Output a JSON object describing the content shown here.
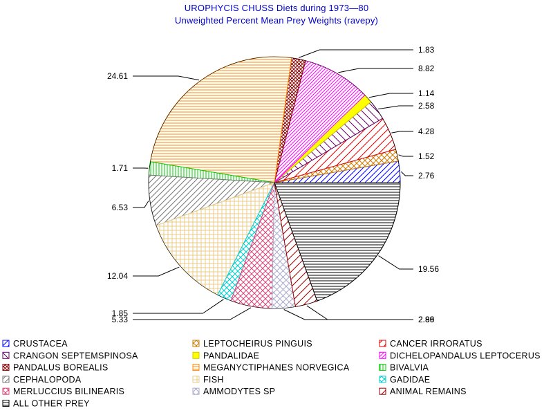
{
  "title": "UROPHYCIS CHUSS Diets during 1973—80",
  "subtitle": "Unweighted Percent Mean Prey Weights (ravepy)",
  "chart_data": {
    "type": "pie",
    "title": "UROPHYCIS CHUSS Diets during 1973—80",
    "subtitle": "Unweighted Percent Mean Prey Weights (ravepy)",
    "unit": "percent",
    "slices": [
      {
        "name": "CRUSTACEA",
        "value": 2.76,
        "label": "2.76",
        "color": "#0000ff",
        "pattern": "diag-up"
      },
      {
        "name": "LEPTOCHEIRUS PINGUIS",
        "value": 1.52,
        "label": "1.52",
        "color": "#cc7a00",
        "pattern": "crosshatch"
      },
      {
        "name": "CANCER IRRORATUS",
        "value": 4.28,
        "label": "4.28",
        "color": "#dd0000",
        "pattern": "diag-up-sparse"
      },
      {
        "name": "CRANGON SEPTEMSPINOSA",
        "value": 2.58,
        "label": "2.58",
        "color": "#660066",
        "pattern": "diag-down"
      },
      {
        "name": "PANDALIDAE",
        "value": 1.14,
        "label": "1.14",
        "color": "#ffff00",
        "pattern": "solid"
      },
      {
        "name": "DICHELOPANDALUS LEPTOCERUS",
        "value": 8.82,
        "label": "8.82",
        "color": "#ff00ff",
        "pattern": "diag-up-dense"
      },
      {
        "name": "PANDALUS BOREALIS",
        "value": 1.83,
        "label": "1.83",
        "color": "#880000",
        "pattern": "crosshatch-dense"
      },
      {
        "name": "MEGANYCTIPHANES NORVEGICA",
        "value": 24.61,
        "label": "24.61",
        "color": "#ff8800",
        "pattern": "horizontal"
      },
      {
        "name": "BIVALVIA",
        "value": 1.71,
        "label": "1.71",
        "color": "#00cc00",
        "pattern": "vertical"
      },
      {
        "name": "CEPHALOPODA",
        "value": 6.53,
        "label": "6.53",
        "color": "#777777",
        "pattern": "diag-up"
      },
      {
        "name": "FISH",
        "value": 12.04,
        "label": "12.04",
        "color": "#e8cc88",
        "pattern": "grid"
      },
      {
        "name": "GADIDAE",
        "value": 1.85,
        "label": "1.85",
        "color": "#00cccc",
        "pattern": "crosshatch"
      },
      {
        "name": "MERLUCCIUS BILINEARIS",
        "value": 5.33,
        "label": "5.33",
        "color": "#dd4477",
        "pattern": "crosshatch"
      },
      {
        "name": "AMMODYTES SP",
        "value": 2.99,
        "label": "2.99",
        "color": "#aaaacc",
        "pattern": "crosshatch-light"
      },
      {
        "name": "ANIMAL REMAINS",
        "value": 2.86,
        "label": "2.86",
        "color": "#990000",
        "pattern": "diag-up-sparse"
      },
      {
        "name": "ALL OTHER PREY",
        "value": 19.56,
        "label": "19.56",
        "color": "#000000",
        "pattern": "horizontal"
      }
    ],
    "legend_position": "bottom"
  }
}
